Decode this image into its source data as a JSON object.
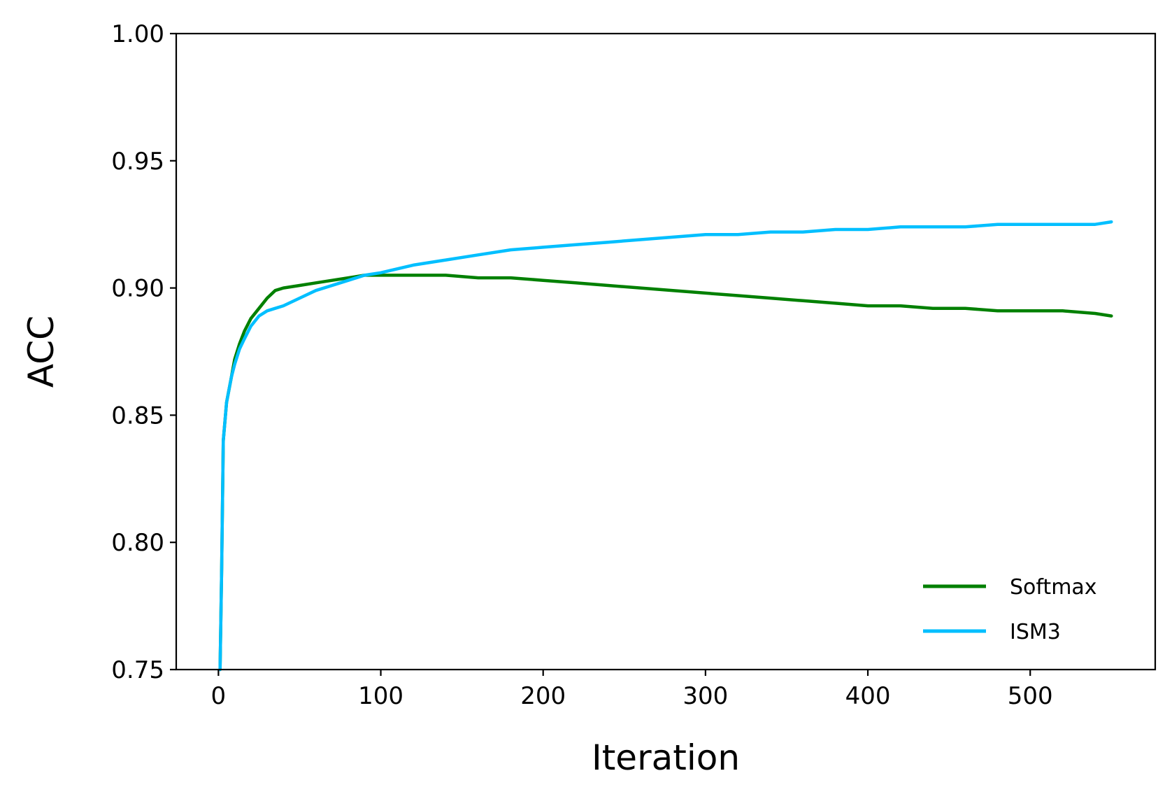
{
  "chart_data": {
    "type": "line",
    "title": "",
    "xlabel": "Iteration",
    "ylabel": "ACC",
    "xlim": [
      -26,
      577
    ],
    "ylim": [
      0.75,
      1.0
    ],
    "xticks": [
      0,
      100,
      200,
      300,
      400,
      500
    ],
    "yticks": [
      0.75,
      0.8,
      0.85,
      0.9,
      0.95,
      1.0
    ],
    "xtick_labels": [
      "0",
      "100",
      "200",
      "300",
      "400",
      "500"
    ],
    "ytick_labels": [
      "0.75",
      "0.80",
      "0.85",
      "0.90",
      "0.95",
      "1.00"
    ],
    "grid": false,
    "legend_position": "lower right",
    "series": [
      {
        "name": "Softmax",
        "color": "#008000",
        "x": [
          1,
          2,
          3,
          5,
          8,
          10,
          13,
          16,
          20,
          25,
          30,
          35,
          40,
          50,
          60,
          70,
          80,
          90,
          100,
          120,
          140,
          160,
          180,
          200,
          220,
          240,
          260,
          280,
          300,
          320,
          340,
          360,
          380,
          400,
          420,
          440,
          460,
          480,
          500,
          520,
          540,
          550
        ],
        "values": [
          0.75,
          0.79,
          0.84,
          0.855,
          0.865,
          0.872,
          0.878,
          0.883,
          0.888,
          0.892,
          0.896,
          0.899,
          0.9,
          0.901,
          0.902,
          0.903,
          0.904,
          0.905,
          0.905,
          0.905,
          0.905,
          0.904,
          0.904,
          0.903,
          0.902,
          0.901,
          0.9,
          0.899,
          0.898,
          0.897,
          0.896,
          0.895,
          0.894,
          0.893,
          0.893,
          0.892,
          0.892,
          0.891,
          0.891,
          0.891,
          0.89,
          0.889
        ]
      },
      {
        "name": "ISM3",
        "color": "#00BFFF",
        "x": [
          1,
          2,
          3,
          5,
          8,
          10,
          13,
          16,
          20,
          25,
          30,
          35,
          40,
          50,
          60,
          70,
          80,
          90,
          100,
          120,
          140,
          160,
          180,
          200,
          220,
          240,
          260,
          280,
          300,
          320,
          340,
          360,
          380,
          400,
          420,
          440,
          460,
          480,
          500,
          520,
          540,
          550
        ],
        "values": [
          0.75,
          0.79,
          0.84,
          0.855,
          0.865,
          0.87,
          0.876,
          0.88,
          0.885,
          0.889,
          0.891,
          0.892,
          0.893,
          0.896,
          0.899,
          0.901,
          0.903,
          0.905,
          0.906,
          0.909,
          0.911,
          0.913,
          0.915,
          0.916,
          0.917,
          0.918,
          0.919,
          0.92,
          0.921,
          0.921,
          0.922,
          0.922,
          0.923,
          0.923,
          0.924,
          0.924,
          0.924,
          0.925,
          0.925,
          0.925,
          0.925,
          0.926
        ]
      }
    ]
  }
}
